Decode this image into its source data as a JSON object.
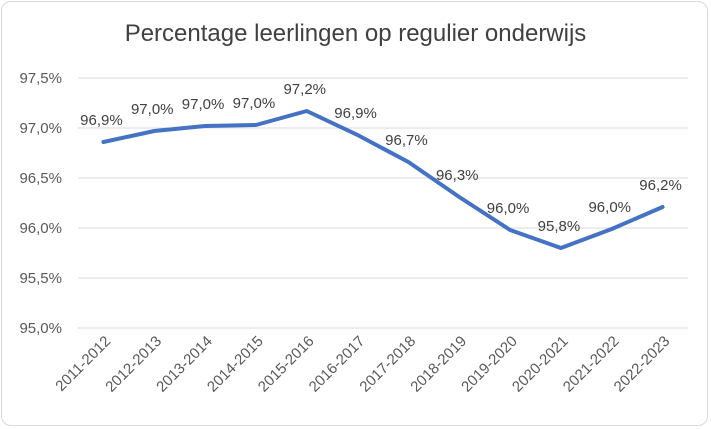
{
  "chart_data": {
    "type": "line",
    "title": "Percentage leerlingen op regulier onderwijs",
    "xlabel": "",
    "ylabel": "",
    "categories": [
      "2011-2012",
      "2012-2013",
      "2013-2014",
      "2014-2015",
      "2015-2016",
      "2016-2017",
      "2017-2018",
      "2018-2019",
      "2019-2020",
      "2020-2021",
      "2021-2022",
      "2022-2023"
    ],
    "series": [
      {
        "values": [
          96.86,
          96.97,
          97.02,
          97.03,
          97.17,
          96.93,
          96.66,
          96.31,
          95.98,
          95.8,
          95.99,
          96.21
        ],
        "labels": [
          "96,9%",
          "97,0%",
          "97,0%",
          "97,0%",
          "97,2%",
          "96,9%",
          "96,7%",
          "96,3%",
          "96,0%",
          "95,8%",
          "96,0%",
          "96,2%"
        ]
      }
    ],
    "ylim": [
      95.0,
      97.5
    ],
    "yticks": [
      95.0,
      95.5,
      96.0,
      96.5,
      97.0,
      97.5
    ],
    "ytick_labels": [
      "95,0%",
      "95,5%",
      "96,0%",
      "96,5%",
      "97,0%",
      "97,5%"
    ],
    "grid": true,
    "line_color": "#4472c4",
    "grid_color": "#d9d9d9"
  }
}
